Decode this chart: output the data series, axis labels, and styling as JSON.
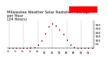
{
  "title": "Milwaukee Weather Solar Radiation Average\nper Hour\n(24 Hours)",
  "hours": [
    0,
    1,
    2,
    3,
    4,
    5,
    6,
    7,
    8,
    9,
    10,
    11,
    12,
    13,
    14,
    15,
    16,
    17,
    18,
    19,
    20,
    21,
    22,
    23
  ],
  "solar_red": [
    0,
    0,
    0,
    0,
    0,
    0,
    2,
    10,
    40,
    100,
    190,
    280,
    320,
    290,
    240,
    180,
    110,
    40,
    5,
    0,
    0,
    0,
    0,
    0
  ],
  "solar_black": [
    0,
    0,
    0,
    0,
    0,
    0,
    1,
    8,
    35,
    90,
    180,
    270,
    310,
    280,
    230,
    170,
    100,
    35,
    3,
    0,
    0,
    0,
    0,
    0
  ],
  "red_color": "#ff0000",
  "black_color": "#000000",
  "bg_color": "#ffffff",
  "grid_color": "#999999",
  "ylim": [
    0,
    350
  ],
  "xlim": [
    -0.5,
    23.5
  ],
  "yticks": [
    50,
    100,
    150,
    200,
    250,
    300
  ],
  "legend_box_color": "#ff0000",
  "title_fontsize": 3.8,
  "tick_fontsize": 3.2
}
